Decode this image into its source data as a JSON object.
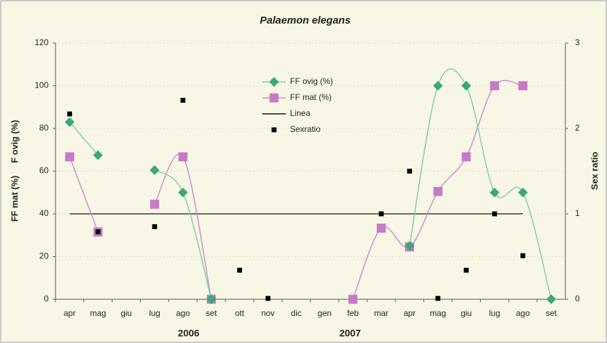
{
  "chart_data": {
    "type": "line",
    "title": "Palaemon elegans",
    "y_label": "FF mat (%)     F ovig (%)",
    "y2_label": "Sex ratio",
    "categories": [
      "apr",
      "mag",
      "giu",
      "lug",
      "ago",
      "set",
      "ott",
      "nov",
      "dic",
      "gen",
      "feb",
      "mar",
      "apr",
      "mag",
      "giu",
      "lug",
      "ago",
      "set"
    ],
    "years": [
      "2006",
      "2007"
    ],
    "ylim": [
      0,
      120
    ],
    "yticks": [
      0,
      20,
      40,
      60,
      80,
      100,
      120
    ],
    "y2lim": [
      0,
      3
    ],
    "y2ticks": [
      0,
      1,
      2,
      3
    ],
    "grid": true,
    "smooth": true,
    "series": [
      {
        "name": "FF ovig (%)",
        "color": "#3aa878",
        "line_color": "#7fcfae",
        "marker": "diamond",
        "values": [
          83,
          67.5,
          null,
          60.5,
          50,
          0,
          null,
          null,
          null,
          null,
          null,
          null,
          25,
          100,
          100,
          50,
          50,
          0
        ]
      },
      {
        "name": "FF mat (%)",
        "color": "#c67ac8",
        "line_color": "#c98fd0",
        "marker": "square",
        "values": [
          66.7,
          31.5,
          null,
          44.5,
          66.7,
          0,
          null,
          null,
          null,
          null,
          0,
          33.3,
          24.5,
          50.5,
          66.7,
          100,
          100,
          null
        ]
      },
      {
        "name": "Linea",
        "color": "#111111",
        "line_color": "#111111",
        "marker": "none",
        "values": [
          40,
          40,
          40,
          40,
          40,
          40,
          40,
          40,
          40,
          40,
          40,
          40,
          40,
          40,
          40,
          40,
          40,
          null
        ]
      },
      {
        "name": "Sexratio",
        "color": "#000000",
        "marker": "small-square",
        "axis": "y2",
        "values": [
          2.17,
          0.79,
          null,
          0.85,
          2.33,
          null,
          0.34,
          0.01,
          null,
          null,
          null,
          1.0,
          1.5,
          0.01,
          0.34,
          1.0,
          0.51,
          null
        ]
      }
    ]
  }
}
